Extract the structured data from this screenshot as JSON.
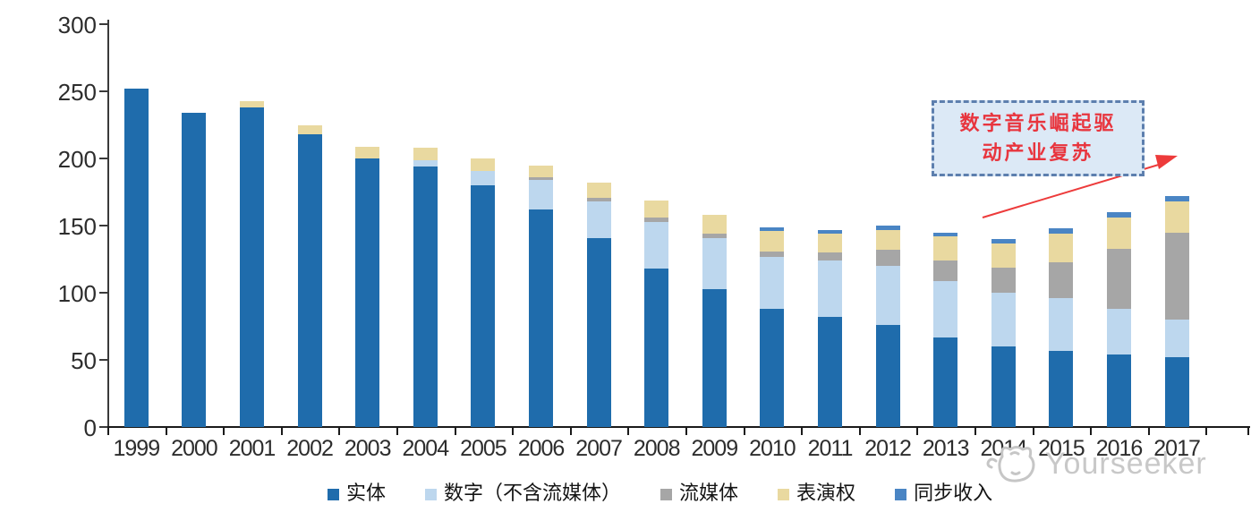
{
  "chart_data": {
    "type": "bar",
    "stacked": true,
    "title": "",
    "categories": [
      "1999",
      "2000",
      "2001",
      "2002",
      "2003",
      "2004",
      "2005",
      "2006",
      "2007",
      "2008",
      "2009",
      "2010",
      "2011",
      "2012",
      "2013",
      "2014",
      "2015",
      "2016",
      "2017"
    ],
    "series": [
      {
        "name": "实体",
        "color": "#1F6CAC",
        "values": [
          252,
          234,
          238,
          218,
          200,
          194,
          180,
          162,
          141,
          118,
          103,
          88,
          82,
          76,
          67,
          60,
          57,
          54,
          52
        ]
      },
      {
        "name": "数字（不含流媒体）",
        "color": "#BDD7EE",
        "values": [
          0,
          0,
          0,
          0,
          0,
          5,
          11,
          22,
          27,
          35,
          38,
          39,
          42,
          44,
          42,
          40,
          39,
          34,
          28
        ]
      },
      {
        "name": "流媒体",
        "color": "#A6A6A6",
        "values": [
          0,
          0,
          0,
          0,
          0,
          0,
          0,
          2,
          3,
          3,
          3,
          4,
          6,
          12,
          15,
          19,
          27,
          45,
          65
        ]
      },
      {
        "name": "表演权",
        "color": "#E9D9A0",
        "values": [
          0,
          0,
          5,
          7,
          9,
          9,
          9,
          9,
          11,
          13,
          14,
          15,
          14,
          15,
          18,
          18,
          21,
          23,
          23
        ]
      },
      {
        "name": "同步收入",
        "color": "#4A85C4",
        "values": [
          0,
          0,
          0,
          0,
          0,
          0,
          0,
          0,
          0,
          0,
          0,
          3,
          3,
          3,
          3,
          3,
          4,
          4,
          4
        ]
      }
    ],
    "ylim": [
      0,
      300
    ],
    "yticks": [
      0,
      50,
      100,
      150,
      200,
      250,
      300
    ],
    "grid": false,
    "legend_position": "bottom"
  },
  "annotation": {
    "lines": [
      "数字音乐崛起驱",
      "动产业复苏"
    ],
    "text_color": "#E8353E",
    "box_border_color": "#5D7FAE",
    "box_fill_color": "#DCE9F6",
    "arrow_color": "#ED3B3B"
  },
  "watermark": {
    "text": "Yourseeker",
    "logo": "cat-mascot-icon",
    "color": "#C8C8C8"
  }
}
